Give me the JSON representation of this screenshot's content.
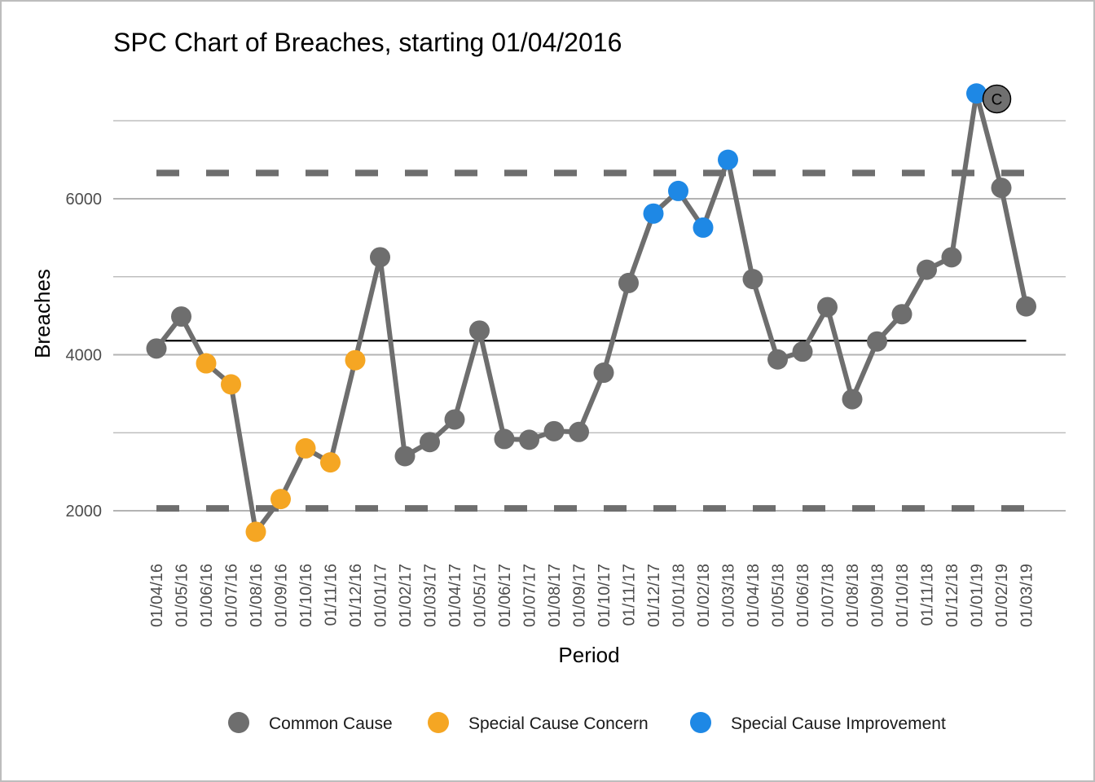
{
  "chart_data": {
    "type": "line",
    "title": "SPC Chart of Breaches, starting 01/04/2016",
    "xlabel": "Period",
    "ylabel": "Breaches",
    "ylim": [
      1200,
      7500
    ],
    "y_ticks": [
      2000,
      4000,
      6000
    ],
    "grid": true,
    "categories": [
      "01/04/16",
      "01/05/16",
      "01/06/16",
      "01/07/16",
      "01/08/16",
      "01/09/16",
      "01/10/16",
      "01/11/16",
      "01/12/16",
      "01/01/17",
      "01/02/17",
      "01/03/17",
      "01/04/17",
      "01/05/17",
      "01/06/17",
      "01/07/17",
      "01/08/17",
      "01/09/17",
      "01/10/17",
      "01/11/17",
      "01/12/17",
      "01/01/18",
      "01/02/18",
      "01/03/18",
      "01/04/18",
      "01/05/18",
      "01/06/18",
      "01/07/18",
      "01/08/18",
      "01/09/18",
      "01/10/18",
      "01/11/18",
      "01/12/18",
      "01/01/19",
      "01/02/19",
      "01/03/19"
    ],
    "values": [
      4080,
      4490,
      3890,
      3620,
      1730,
      2150,
      2800,
      2620,
      3930,
      5250,
      2700,
      2880,
      3170,
      4310,
      2920,
      2910,
      3020,
      3010,
      3770,
      4920,
      5810,
      6100,
      5630,
      6500,
      4970,
      3940,
      4040,
      4610,
      3430,
      4170,
      4520,
      5090,
      5250,
      7350,
      6140,
      4620
    ],
    "point_class": [
      "common",
      "common",
      "concern",
      "concern",
      "concern",
      "concern",
      "concern",
      "concern",
      "concern",
      "common",
      "common",
      "common",
      "common",
      "common",
      "common",
      "common",
      "common",
      "common",
      "common",
      "common",
      "improvement",
      "improvement",
      "improvement",
      "improvement",
      "common",
      "common",
      "common",
      "common",
      "common",
      "common",
      "common",
      "common",
      "common",
      "improvement",
      "common",
      "common"
    ],
    "mean": 4180,
    "upper_limit": 6330,
    "lower_limit": 2030,
    "annotation": {
      "category": "01/01/19",
      "label": "C",
      "value": 7280
    },
    "colors": {
      "common": "#6e6e6e",
      "concern": "#f5a623",
      "improvement": "#1e88e5",
      "line": "#6e6e6e",
      "limits": "#6e6e6e",
      "mean": "#000000",
      "grid": "#b3b3b3"
    },
    "legend": {
      "position": "bottom",
      "items": [
        {
          "key": "common",
          "label": "Common Cause"
        },
        {
          "key": "concern",
          "label": "Special Cause Concern"
        },
        {
          "key": "improvement",
          "label": "Special Cause Improvement"
        }
      ]
    }
  }
}
